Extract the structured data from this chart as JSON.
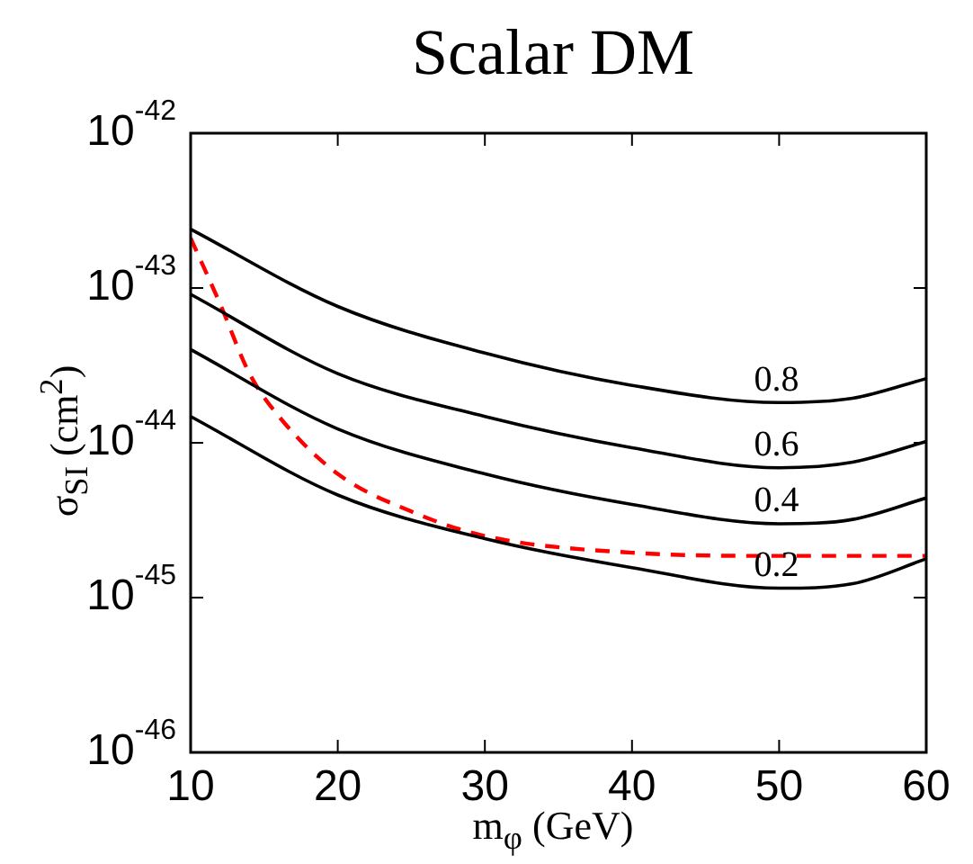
{
  "chart_data": {
    "type": "line",
    "title": "Scalar DM",
    "xlabel": "m$_{φ}$ (GeV)",
    "ylabel": "σ$_{SI}$ (cm$^{2}$)",
    "log": "y",
    "grid": false,
    "legend": false,
    "marker": "none",
    "xlim": [
      10,
      60
    ],
    "xticks": [
      10,
      20,
      30,
      40,
      50,
      60
    ],
    "ylim": [
      1e-46,
      1e-42
    ],
    "yticks": [
      {
        "value": 1e-46,
        "label": "10$^{-46}$"
      },
      {
        "value": 1e-45,
        "label": "10$^{-45}$"
      },
      {
        "value": 1e-44,
        "label": "10$^{-44}$"
      },
      {
        "value": 1e-43,
        "label": "10$^{-43}$"
      },
      {
        "value": 1e-42,
        "label": "10$^{-42}$"
      }
    ],
    "x": [
      10,
      20,
      30,
      40,
      50,
      55,
      60
    ],
    "series": [
      {
        "name": "0.8",
        "color": "#000000",
        "line_style": "solid",
        "values": [
          2.4e-43,
          7.6e-44,
          3.8e-44,
          2.35e-44,
          1.82e-44,
          1.94e-44,
          2.6e-44
        ]
      },
      {
        "name": "0.6",
        "color": "#000000",
        "line_style": "solid",
        "values": [
          9.1e-44,
          2.8e-44,
          1.48e-44,
          9.3e-45,
          6.9e-45,
          7.5e-45,
          1.02e-44
        ]
      },
      {
        "name": "0.4",
        "color": "#000000",
        "line_style": "solid",
        "values": [
          4e-44,
          1.23e-44,
          6.3e-45,
          4e-45,
          3e-45,
          3.2e-45,
          4.4e-45
        ]
      },
      {
        "name": "0.2",
        "color": "#000000",
        "line_style": "solid",
        "values": [
          1.48e-44,
          4.6e-45,
          2.4e-45,
          1.56e-45,
          1.15e-45,
          1.23e-45,
          1.78e-45
        ]
      },
      {
        "color": "#ff0000",
        "line_style": "dashed",
        "x": [
          10,
          12,
          14,
          16,
          20,
          25,
          30,
          40,
          50,
          60
        ],
        "values": [
          2.1e-43,
          7.9e-44,
          2.8e-44,
          1.48e-44,
          6.3e-45,
          3.6e-45,
          2.5e-45,
          1.95e-45,
          1.86e-45,
          1.86e-45
        ]
      }
    ]
  }
}
